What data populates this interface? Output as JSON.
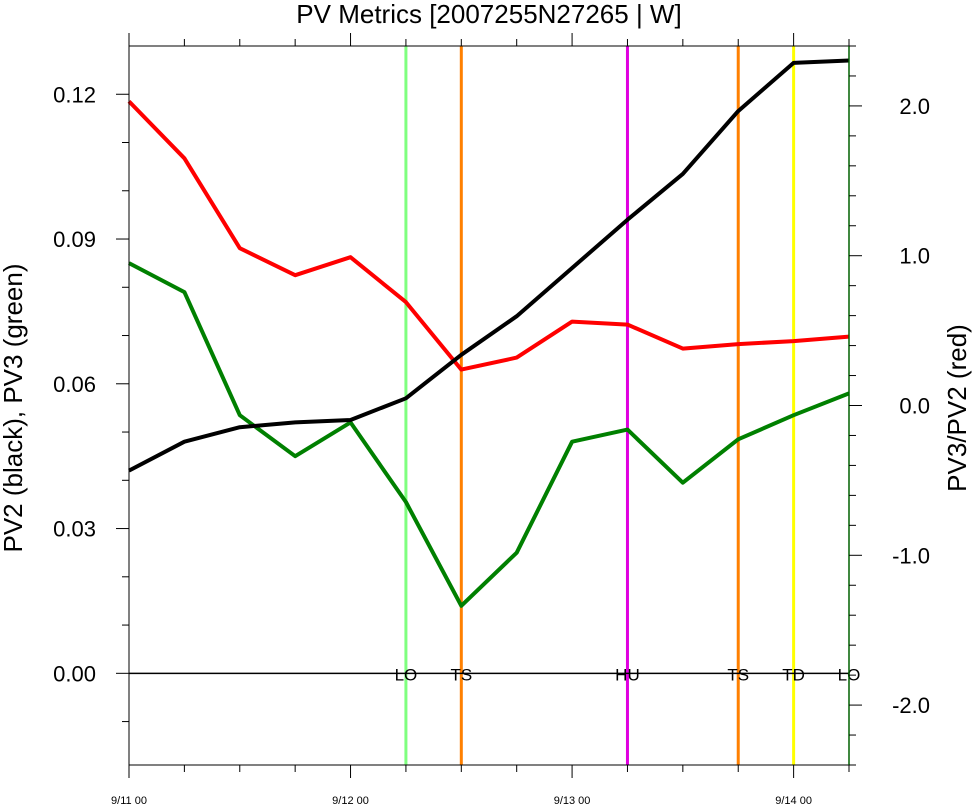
{
  "chart_data": {
    "type": "line",
    "title": "PV Metrics [2007255N27265 | W]",
    "ylabel_left": "PV2 (black), PV3 (green)",
    "ylabel_right": "PV3/PV2 (red)",
    "x_unit": "hours since 9/11 00",
    "xlim": [
      0,
      78
    ],
    "ylim_left": [
      -0.019,
      0.13
    ],
    "ylim_right": [
      -2.4,
      2.4
    ],
    "x_ticks": [
      {
        "x": 0,
        "label": "9/11 00"
      },
      {
        "x": 24,
        "label": "9/12 00"
      },
      {
        "x": 48,
        "label": "9/13 00"
      },
      {
        "x": 72,
        "label": "9/14 00"
      }
    ],
    "y_ticks_left": [
      {
        "v": 0.0,
        "label": "0.00"
      },
      {
        "v": 0.03,
        "label": "0.03"
      },
      {
        "v": 0.06,
        "label": "0.06"
      },
      {
        "v": 0.09,
        "label": "0.09"
      },
      {
        "v": 0.12,
        "label": "0.12"
      }
    ],
    "y_ticks_right": [
      {
        "v": -2.0,
        "label": "-2.0"
      },
      {
        "v": -1.0,
        "label": "-1.0"
      },
      {
        "v": 0.0,
        "label": "0.0"
      },
      {
        "v": 1.0,
        "label": "1.0"
      },
      {
        "v": 2.0,
        "label": "2.0"
      }
    ],
    "x": [
      0,
      6,
      12,
      18,
      24,
      30,
      36,
      42,
      48,
      54,
      60,
      66,
      72,
      78
    ],
    "series": [
      {
        "name": "PV2",
        "axis": "left",
        "color": "#000000",
        "values": [
          0.042,
          0.048,
          0.051,
          0.052,
          0.0525,
          0.057,
          0.066,
          0.074,
          0.084,
          0.094,
          0.1035,
          0.1165,
          0.1265,
          0.127
        ]
      },
      {
        "name": "PV3",
        "axis": "left",
        "color": "#008000",
        "values": [
          0.085,
          0.079,
          0.0535,
          0.045,
          0.052,
          0.0355,
          0.014,
          0.025,
          0.048,
          0.0505,
          0.0395,
          0.0485,
          0.0535,
          0.058
        ]
      },
      {
        "name": "PV3/PV2",
        "axis": "right",
        "color": "#ff0000",
        "values": [
          2.03,
          1.65,
          1.05,
          0.87,
          0.99,
          0.69,
          0.24,
          0.32,
          0.56,
          0.54,
          0.38,
          0.41,
          0.43,
          0.46
        ]
      }
    ],
    "vlines": [
      {
        "x": 30,
        "label": "LO",
        "color": "#7fff7f"
      },
      {
        "x": 36,
        "label": "TS",
        "color": "#ff8000"
      },
      {
        "x": 54,
        "label": "HU",
        "color": "#e000e0"
      },
      {
        "x": 66,
        "label": "TS",
        "color": "#ff8000"
      },
      {
        "x": 72,
        "label": "TD",
        "color": "#ffff00"
      },
      {
        "x": 78,
        "label": "LO",
        "color": ""
      }
    ],
    "zero_line": true,
    "grid": false,
    "legend": "none"
  }
}
